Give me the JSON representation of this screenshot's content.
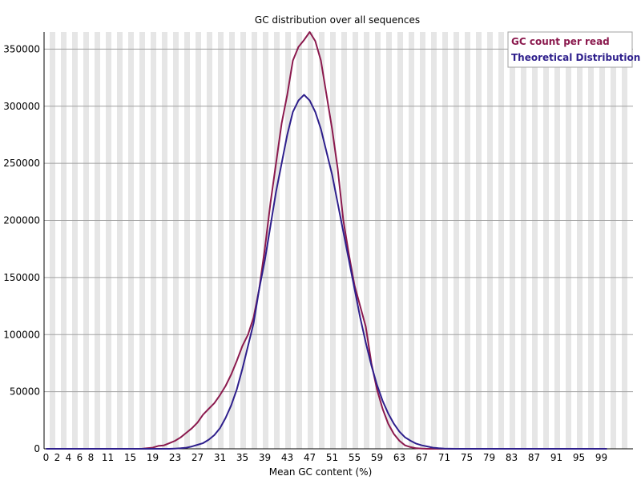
{
  "chart_data": {
    "type": "line",
    "title": "GC distribution over all sequences",
    "xlabel": "Mean GC content (%)",
    "ylabel": "",
    "xlim": [
      0,
      100
    ],
    "ylim": [
      0,
      365000
    ],
    "x_ticks": [
      0,
      2,
      4,
      6,
      8,
      11,
      15,
      19,
      23,
      27,
      31,
      35,
      39,
      43,
      47,
      51,
      55,
      59,
      63,
      67,
      71,
      75,
      79,
      83,
      87,
      91,
      95,
      99
    ],
    "y_ticks": [
      0,
      50000,
      100000,
      150000,
      200000,
      250000,
      300000,
      350000
    ],
    "grid": "alternating vertical bands",
    "legend_position": "top-right",
    "colors": {
      "band_light": "#ffffff",
      "band_dark": "#e6e6e6",
      "gridline": "#a0a0a0"
    },
    "x": [
      0,
      1,
      2,
      3,
      4,
      5,
      6,
      7,
      8,
      9,
      10,
      11,
      12,
      13,
      14,
      15,
      16,
      17,
      18,
      19,
      20,
      21,
      22,
      23,
      24,
      25,
      26,
      27,
      28,
      29,
      30,
      31,
      32,
      33,
      34,
      35,
      36,
      37,
      38,
      39,
      40,
      41,
      42,
      43,
      44,
      45,
      46,
      47,
      48,
      49,
      50,
      51,
      52,
      53,
      54,
      55,
      56,
      57,
      58,
      59,
      60,
      61,
      62,
      63,
      64,
      65,
      66,
      67,
      68,
      69,
      70,
      71,
      72,
      73,
      74,
      75,
      76,
      77,
      78,
      79,
      80,
      81,
      82,
      83,
      84,
      85,
      86,
      87,
      88,
      89,
      90,
      91,
      92,
      93,
      94,
      95,
      96,
      97,
      98,
      99,
      100
    ],
    "series": [
      {
        "name": "GC count per read",
        "color": "#8b1a4e",
        "values": [
          0,
          0,
          0,
          0,
          0,
          0,
          0,
          0,
          0,
          0,
          0,
          0,
          0,
          0,
          0,
          0,
          0,
          0,
          500,
          1000,
          2500,
          3000,
          5000,
          7000,
          10000,
          14000,
          18000,
          23000,
          30000,
          35000,
          40000,
          47000,
          55000,
          65000,
          77000,
          90000,
          100000,
          115000,
          140000,
          175000,
          215000,
          250000,
          285000,
          310000,
          340000,
          352000,
          358000,
          365000,
          357000,
          340000,
          310000,
          280000,
          245000,
          200000,
          170000,
          143000,
          125000,
          107000,
          75000,
          52000,
          35000,
          22000,
          13000,
          7000,
          3000,
          1500,
          500,
          200,
          0,
          0,
          0,
          0,
          0,
          0,
          0,
          0,
          0,
          0,
          0,
          0,
          0,
          0,
          0,
          0,
          0,
          0,
          0,
          0,
          0,
          0,
          0,
          0,
          0,
          0,
          0,
          0,
          0,
          0,
          0,
          0,
          0
        ]
      },
      {
        "name": "Theoretical Distribution",
        "color": "#2e1f8c",
        "values": [
          0,
          0,
          0,
          0,
          0,
          0,
          0,
          0,
          0,
          0,
          0,
          0,
          0,
          0,
          0,
          0,
          0,
          0,
          0,
          0,
          0,
          0,
          0,
          200,
          500,
          1000,
          2000,
          3500,
          5000,
          8000,
          12000,
          18000,
          27000,
          38000,
          52000,
          70000,
          90000,
          110000,
          140000,
          165000,
          195000,
          225000,
          250000,
          275000,
          295000,
          305000,
          310000,
          305000,
          295000,
          280000,
          260000,
          240000,
          215000,
          190000,
          165000,
          140000,
          115000,
          93000,
          73000,
          56000,
          42000,
          31000,
          22000,
          15000,
          10000,
          7000,
          4500,
          3000,
          2000,
          1000,
          500,
          200,
          100,
          0,
          0,
          0,
          0,
          0,
          0,
          0,
          0,
          0,
          0,
          0,
          0,
          0,
          0,
          0,
          0,
          0,
          0,
          0,
          0,
          0,
          0,
          0,
          0,
          0,
          0,
          0,
          0
        ]
      }
    ]
  }
}
